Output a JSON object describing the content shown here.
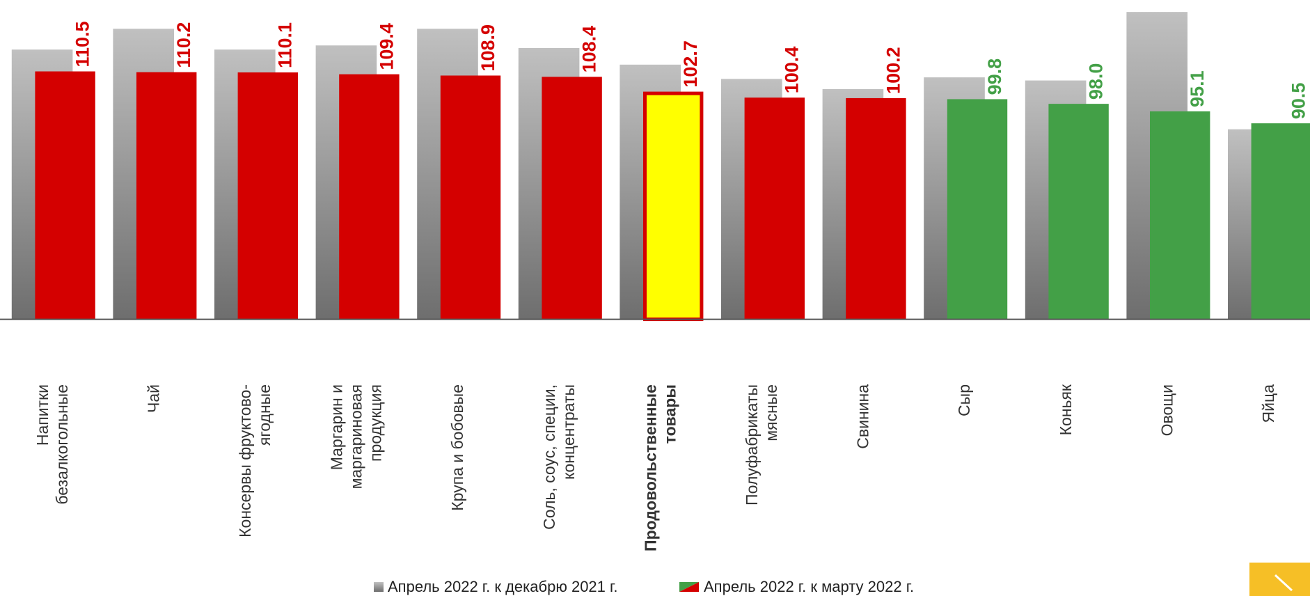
{
  "chart_data": {
    "type": "bar",
    "categories": [
      "Напитки\nбезалкогольные",
      "Чай",
      "Консервы фруктово-\nягодные",
      "Маргарин и\nмаргариновая\nпродукция",
      "Крупа и бобовые",
      "Соль, соус, специи,\nконцентраты",
      "Продовольственные\nтовары",
      "Полуфабрикаты\nмясные",
      "Свинина",
      "Сыр",
      "Коньяк",
      "Овощи",
      "Яйца"
    ],
    "bold_category": 6,
    "ylim": [
      15,
      138
    ],
    "series": [
      {
        "name": "Апрель 2022 г. к декабрю 2021 г.",
        "values": [
          118.9,
          126.9,
          118.9,
          120.5,
          126.9,
          119.5,
          113.1,
          107.6,
          103.7,
          108.2,
          107.0,
          133.4,
          88.2
        ]
      },
      {
        "name": "Апрель 2022 г. к марту 2022 г.",
        "values": [
          110.5,
          110.2,
          110.1,
          109.4,
          108.9,
          108.4,
          102.7,
          100.4,
          100.2,
          99.8,
          98.0,
          95.1,
          90.5
        ],
        "value_labels": [
          "110.5",
          "110.2",
          "110.1",
          "109.4",
          "108.9",
          "108.4",
          "102.7",
          "100.4",
          "100.2",
          "99.8",
          "98.0",
          "95.1",
          "90.5"
        ],
        "colors": [
          "#d40000",
          "#d40000",
          "#d40000",
          "#d40000",
          "#d40000",
          "#d40000",
          "#ffff00",
          "#d40000",
          "#d40000",
          "#43a047",
          "#43a047",
          "#43a047",
          "#43a047"
        ],
        "label_colors": [
          "#d40000",
          "#d40000",
          "#d40000",
          "#d40000",
          "#d40000",
          "#d40000",
          "#d40000",
          "#d40000",
          "#d40000",
          "#43a047",
          "#43a047",
          "#43a047",
          "#43a047"
        ],
        "border_color": "#d40000"
      }
    ]
  }
}
